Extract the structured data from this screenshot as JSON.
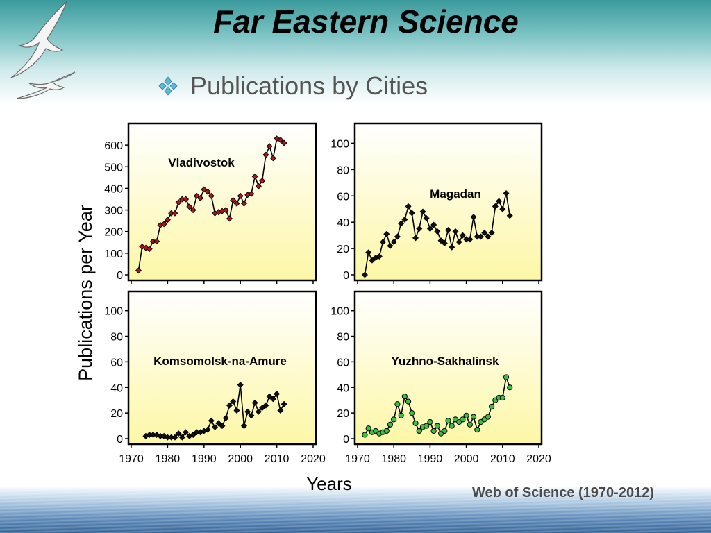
{
  "slide": {
    "title": "Far Eastern Science",
    "subtitle": "Publications by Cities",
    "source": "Web of Science (1970-2012)",
    "bullet_icon": "diamond-cluster-bullet-icon",
    "decor_icon": "seagulls-icon"
  },
  "chart_data": {
    "type": "line",
    "ylabel": "Publications per Year",
    "xlabel": "Years",
    "x_ticks": [
      1970,
      1980,
      1990,
      2000,
      2010,
      2020
    ],
    "xlim": [
      1970,
      2020
    ],
    "panels": [
      {
        "name": "Vladivostok",
        "marker_color": "#b01818",
        "ylim": [
          0,
          700
        ],
        "y_ticks": [
          0,
          100,
          200,
          300,
          400,
          500,
          600
        ],
        "x": [
          1972,
          1973,
          1974,
          1975,
          1976,
          1977,
          1978,
          1979,
          1980,
          1981,
          1982,
          1983,
          1984,
          1985,
          1986,
          1987,
          1988,
          1989,
          1990,
          1991,
          1992,
          1993,
          1994,
          1995,
          1996,
          1997,
          1998,
          1999,
          2000,
          2001,
          2002,
          2003,
          2004,
          2005,
          2006,
          2007,
          2008,
          2009,
          2010,
          2011,
          2012
        ],
        "values": [
          20,
          130,
          125,
          120,
          155,
          155,
          230,
          235,
          255,
          285,
          285,
          335,
          350,
          350,
          315,
          300,
          365,
          355,
          395,
          385,
          365,
          285,
          290,
          295,
          300,
          260,
          345,
          330,
          365,
          330,
          370,
          375,
          455,
          410,
          435,
          555,
          595,
          540,
          630,
          625,
          610
        ]
      },
      {
        "name": "Magadan",
        "marker_color": "#111111",
        "ylim": [
          0,
          115
        ],
        "y_ticks": [
          0,
          20,
          40,
          60,
          80,
          100
        ],
        "x": [
          1972,
          1973,
          1974,
          1975,
          1976,
          1977,
          1978,
          1979,
          1980,
          1981,
          1982,
          1983,
          1984,
          1985,
          1986,
          1987,
          1988,
          1989,
          1990,
          1991,
          1992,
          1993,
          1994,
          1995,
          1996,
          1997,
          1998,
          1999,
          2000,
          2001,
          2002,
          2003,
          2004,
          2005,
          2006,
          2007,
          2008,
          2009,
          2010,
          2011,
          2012
        ],
        "values": [
          0,
          17,
          11,
          13,
          14,
          25,
          31,
          22,
          25,
          29,
          39,
          42,
          52,
          47,
          28,
          35,
          48,
          43,
          35,
          38,
          33,
          26,
          24,
          34,
          21,
          33,
          25,
          30,
          27,
          27,
          44,
          29,
          29,
          32,
          29,
          32,
          52,
          56,
          50,
          62,
          45
        ]
      },
      {
        "name": "Komsomolsk-na-Amure",
        "marker_color": "#111111",
        "ylim": [
          0,
          115
        ],
        "y_ticks": [
          0,
          20,
          40,
          60,
          80,
          100
        ],
        "x": [
          1974,
          1975,
          1976,
          1977,
          1978,
          1979,
          1980,
          1981,
          1982,
          1983,
          1984,
          1985,
          1986,
          1987,
          1988,
          1989,
          1990,
          1991,
          1992,
          1993,
          1994,
          1995,
          1996,
          1997,
          1998,
          1999,
          2000,
          2001,
          2002,
          2003,
          2004,
          2005,
          2006,
          2007,
          2008,
          2009,
          2010,
          2011,
          2012
        ],
        "values": [
          2,
          3,
          3,
          3,
          2,
          2,
          1,
          1,
          1,
          4,
          1,
          5,
          2,
          3,
          5,
          5,
          6,
          7,
          14,
          9,
          12,
          10,
          16,
          26,
          29,
          22,
          42,
          10,
          21,
          18,
          28,
          21,
          24,
          26,
          33,
          31,
          35,
          22,
          27
        ]
      },
      {
        "name": "Yuzhno-Sakhalinsk",
        "marker_color": "#3fbf3f",
        "ylim": [
          0,
          115
        ],
        "y_ticks": [
          0,
          20,
          40,
          60,
          80,
          100
        ],
        "x": [
          1972,
          1973,
          1974,
          1975,
          1976,
          1977,
          1978,
          1979,
          1980,
          1981,
          1982,
          1983,
          1984,
          1985,
          1986,
          1987,
          1988,
          1989,
          1990,
          1991,
          1992,
          1993,
          1994,
          1995,
          1996,
          1997,
          1998,
          1999,
          2000,
          2001,
          2002,
          2003,
          2004,
          2005,
          2006,
          2007,
          2008,
          2009,
          2010,
          2011,
          2012
        ],
        "values": [
          3,
          8,
          5,
          6,
          4,
          5,
          6,
          11,
          15,
          27,
          18,
          33,
          29,
          20,
          12,
          6,
          9,
          10,
          13,
          6,
          10,
          4,
          6,
          14,
          10,
          15,
          13,
          15,
          18,
          11,
          17,
          7,
          13,
          15,
          17,
          25,
          30,
          32,
          32,
          48,
          40
        ]
      }
    ]
  }
}
